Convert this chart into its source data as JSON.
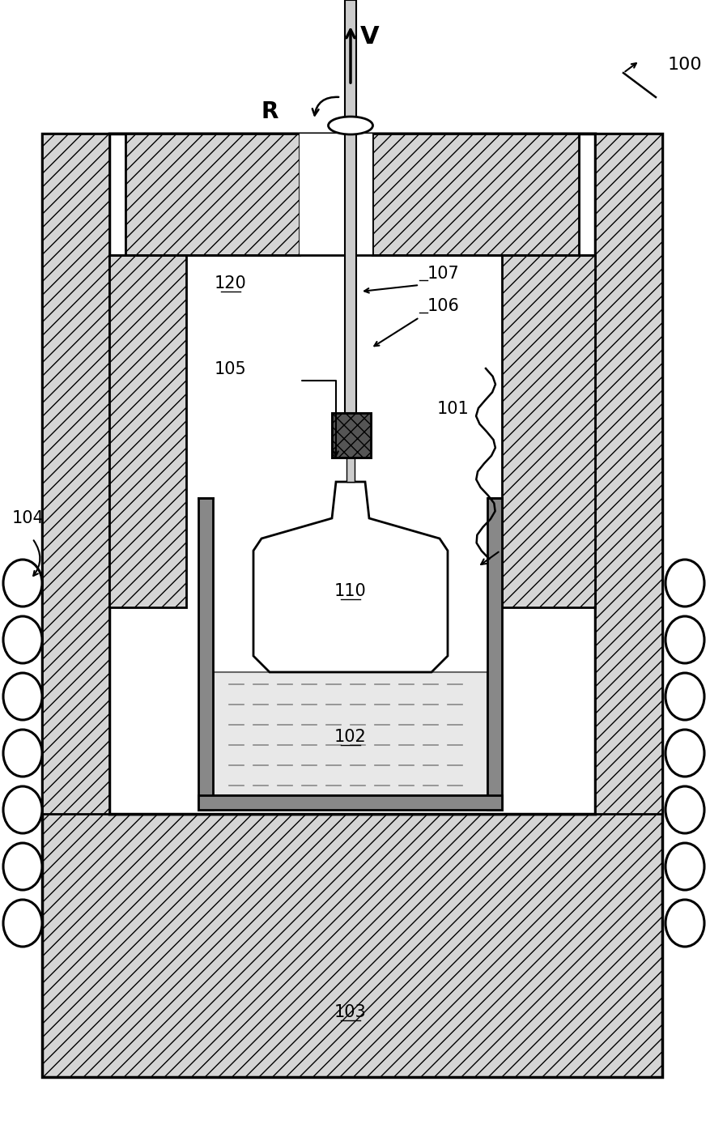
{
  "bg_color": "#ffffff",
  "hatch_fc": "#d8d8d8",
  "white": "#ffffff",
  "melt_fc": "#e0e0e0",
  "chuck_fc": "#555555",
  "wall_fc": "#aaaaaa",
  "line_color": "#000000"
}
